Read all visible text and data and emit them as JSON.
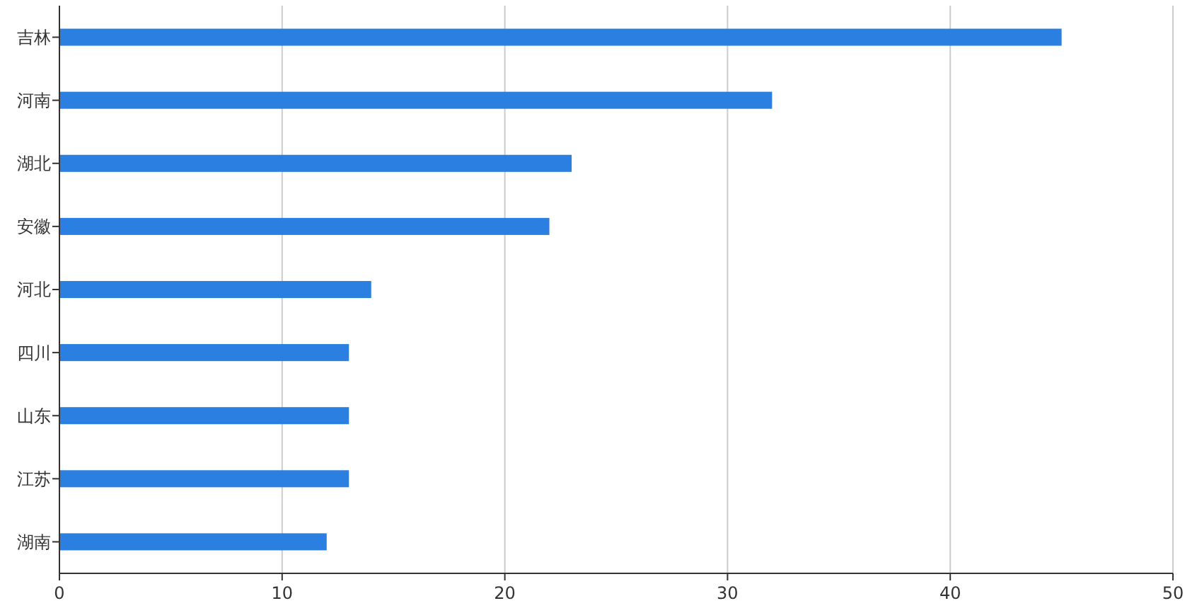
{
  "chart_data": {
    "type": "bar",
    "orientation": "horizontal",
    "categories": [
      "吉林",
      "河南",
      "湖北",
      "安徽",
      "河北",
      "四川",
      "山东",
      "江苏",
      "湖南"
    ],
    "values": [
      45,
      32,
      23,
      22,
      14,
      13,
      13,
      13,
      12
    ],
    "color": "#2a7fe0",
    "xlim": [
      0,
      50
    ],
    "xticks": [
      0,
      10,
      20,
      30,
      40,
      50
    ],
    "grid": "x"
  }
}
